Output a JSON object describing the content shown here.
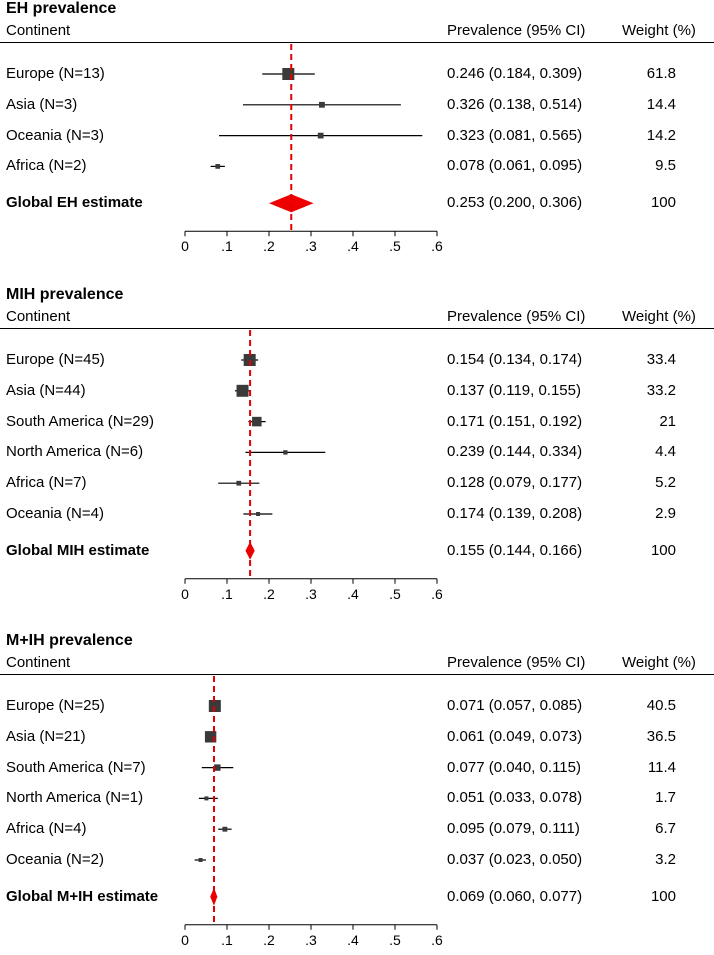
{
  "colors": {
    "marker": "#3a3a3a",
    "diamond": "#ee0000",
    "refline": "#e00000",
    "ci": "#000000"
  },
  "headers": {
    "continent": "Continent",
    "prevalence": "Prevalence (95% CI)",
    "weight": "Weight (%)"
  },
  "chart_data": [
    {
      "type": "forest",
      "title": "EH prevalence",
      "xlim": [
        0,
        0.6
      ],
      "ticks": [
        0,
        0.1,
        0.2,
        0.3,
        0.4,
        0.5,
        0.6
      ],
      "tick_labels": [
        "0",
        ".1",
        ".2",
        ".3",
        ".4",
        ".5",
        ".6"
      ],
      "rows": [
        {
          "label": "Europe (N=13)",
          "est": 0.246,
          "lo": 0.184,
          "hi": 0.309,
          "prev": "0.246 (0.184,  0.309)",
          "weight": "61.8"
        },
        {
          "label": "Asia (N=3)",
          "est": 0.326,
          "lo": 0.138,
          "hi": 0.514,
          "prev": "0.326 (0.138,  0.514)",
          "weight": "14.4"
        },
        {
          "label": "Oceania (N=3)",
          "est": 0.323,
          "lo": 0.081,
          "hi": 0.565,
          "prev": "0.323 (0.081,  0.565)",
          "weight": "14.2"
        },
        {
          "label": "Africa (N=2)",
          "est": 0.078,
          "lo": 0.061,
          "hi": 0.095,
          "prev": "0.078 (0.061,  0.095)",
          "weight": "9.5"
        }
      ],
      "global": {
        "label": "Global EH estimate",
        "est": 0.253,
        "lo": 0.2,
        "hi": 0.306,
        "prev": "0.253 (0.200,  0.306)",
        "weight": "100"
      }
    },
    {
      "type": "forest",
      "title": "MIH prevalence",
      "xlim": [
        0,
        0.6
      ],
      "ticks": [
        0,
        0.1,
        0.2,
        0.3,
        0.4,
        0.5,
        0.6
      ],
      "tick_labels": [
        "0",
        ".1",
        ".2",
        ".3",
        ".4",
        ".5",
        ".6"
      ],
      "rows": [
        {
          "label": "Europe (N=45)",
          "est": 0.154,
          "lo": 0.134,
          "hi": 0.174,
          "prev": "0.154 (0.134,  0.174)",
          "weight": "33.4"
        },
        {
          "label": "Asia (N=44)",
          "est": 0.137,
          "lo": 0.119,
          "hi": 0.155,
          "prev": "0.137 (0.119,  0.155)",
          "weight": "33.2"
        },
        {
          "label": "South America (N=29)",
          "est": 0.171,
          "lo": 0.151,
          "hi": 0.192,
          "prev": "0.171 (0.151,  0.192)",
          "weight": "21"
        },
        {
          "label": "North America (N=6)",
          "est": 0.239,
          "lo": 0.144,
          "hi": 0.334,
          "prev": "0.239 (0.144,  0.334)",
          "weight": "4.4"
        },
        {
          "label": "Africa (N=7)",
          "est": 0.128,
          "lo": 0.079,
          "hi": 0.177,
          "prev": "0.128 (0.079,  0.177)",
          "weight": "5.2"
        },
        {
          "label": "Oceania (N=4)",
          "est": 0.174,
          "lo": 0.139,
          "hi": 0.208,
          "prev": "0.174 (0.139,  0.208)",
          "weight": "2.9"
        }
      ],
      "global": {
        "label": "Global MIH estimate",
        "est": 0.155,
        "lo": 0.144,
        "hi": 0.166,
        "prev": "0.155 (0.144,  0.166)",
        "weight": "100"
      }
    },
    {
      "type": "forest",
      "title": "M+IH prevalence",
      "xlim": [
        0,
        0.6
      ],
      "ticks": [
        0,
        0.1,
        0.2,
        0.3,
        0.4,
        0.5,
        0.6
      ],
      "tick_labels": [
        "0",
        ".1",
        ".2",
        ".3",
        ".4",
        ".5",
        ".6"
      ],
      "rows": [
        {
          "label": "Europe (N=25)",
          "est": 0.071,
          "lo": 0.057,
          "hi": 0.085,
          "prev": "0.071 (0.057,  0.085)",
          "weight": "40.5"
        },
        {
          "label": "Asia (N=21)",
          "est": 0.061,
          "lo": 0.049,
          "hi": 0.073,
          "prev": "0.061 (0.049,  0.073)",
          "weight": "36.5"
        },
        {
          "label": "South America (N=7)",
          "est": 0.077,
          "lo": 0.04,
          "hi": 0.115,
          "prev": "0.077 (0.040,  0.115)",
          "weight": "11.4"
        },
        {
          "label": "North America (N=1)",
          "est": 0.051,
          "lo": 0.033,
          "hi": 0.078,
          "prev": "0.051 (0.033,  0.078)",
          "weight": "1.7"
        },
        {
          "label": "Africa (N=4)",
          "est": 0.095,
          "lo": 0.079,
          "hi": 0.111,
          "prev": "0.095 (0.079,  0.111)",
          "weight": "6.7"
        },
        {
          "label": "Oceania (N=2)",
          "est": 0.037,
          "lo": 0.023,
          "hi": 0.05,
          "prev": "0.037 (0.023,  0.050)",
          "weight": "3.2"
        }
      ],
      "global": {
        "label": "Global M+IH estimate",
        "est": 0.069,
        "lo": 0.06,
        "hi": 0.077,
        "prev": "0.069 (0.060,  0.077)",
        "weight": "100"
      }
    }
  ]
}
